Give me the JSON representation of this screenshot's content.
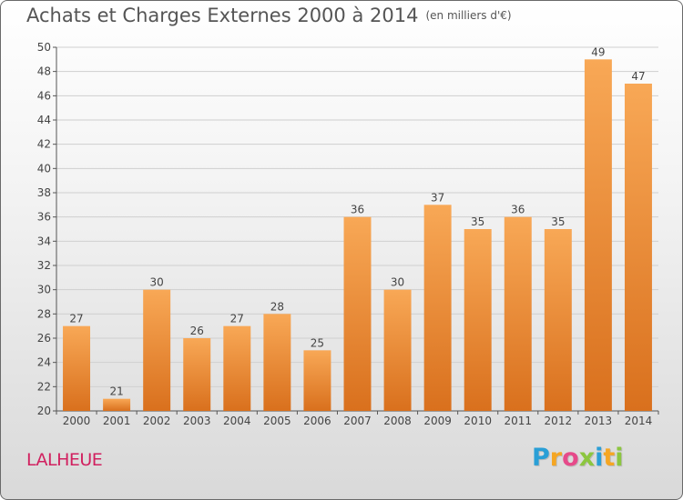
{
  "title": "Achats et Charges Externes 2000 à 2014",
  "unit": "(en milliers d'€)",
  "commune": "LALHEUE",
  "logo": {
    "letters": [
      {
        "ch": "P",
        "color": "#2a9fd6"
      },
      {
        "ch": "r",
        "color": "#f5a623"
      },
      {
        "ch": "o",
        "color": "#e64a8a"
      },
      {
        "ch": "x",
        "color": "#8cc63f"
      },
      {
        "ch": "i",
        "color": "#2a9fd6"
      },
      {
        "ch": "t",
        "color": "#f5a623"
      },
      {
        "ch": "i",
        "color": "#8cc63f"
      }
    ]
  },
  "colors": {
    "bar_top": "#f8a856",
    "bar_bottom": "#d9701d",
    "grid": "#cfcfcf",
    "axis": "#555555"
  },
  "chart_data": {
    "type": "bar",
    "title": "Achats et Charges Externes 2000 à 2014",
    "xlabel": "",
    "ylabel": "",
    "categories": [
      "2000",
      "2001",
      "2002",
      "2003",
      "2004",
      "2005",
      "2006",
      "2007",
      "2008",
      "2009",
      "2010",
      "2011",
      "2012",
      "2013",
      "2014"
    ],
    "values": [
      27,
      21,
      30,
      26,
      27,
      28,
      25,
      36,
      30,
      37,
      35,
      36,
      35,
      49,
      47
    ],
    "ylim": [
      20,
      50
    ],
    "yticks": [
      20,
      22,
      24,
      26,
      28,
      30,
      32,
      34,
      36,
      38,
      40,
      42,
      44,
      46,
      48,
      50
    ],
    "grid": true,
    "data_labels": true
  }
}
